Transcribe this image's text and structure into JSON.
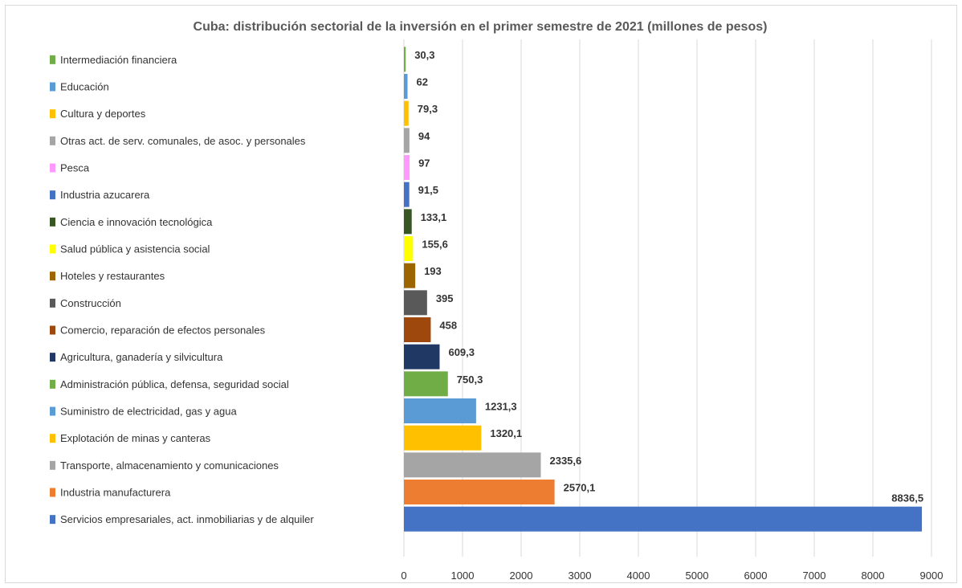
{
  "chart_data": {
    "type": "bar",
    "orientation": "horizontal",
    "title": "Cuba: distribución sectorial de la inversión en el primer semestre de 2021 (millones de pesos)",
    "xlabel": "",
    "ylabel": "",
    "xlim": [
      0,
      9000
    ],
    "x_ticks": [
      "0",
      "1000",
      "2000",
      "3000",
      "4000",
      "5000",
      "6000",
      "7000",
      "8000",
      "9000"
    ],
    "grid": "vertical",
    "legend": "left",
    "bars": [
      {
        "label": "Intermediación financiera",
        "value": 30.3,
        "value_label": "30,3",
        "color": "#70ad47"
      },
      {
        "label": "Educación",
        "value": 62,
        "value_label": "62",
        "color": "#5b9bd5"
      },
      {
        "label": "Cultura y deportes",
        "value": 79.3,
        "value_label": "79,3",
        "color": "#ffc000"
      },
      {
        "label": "Otras act. de serv. comunales, de asoc. y personales",
        "value": 94,
        "value_label": "94",
        "color": "#a5a5a5"
      },
      {
        "label": "Pesca",
        "value": 97,
        "value_label": "97",
        "color": "#ff99ff"
      },
      {
        "label": "Industria azucarera",
        "value": 91.5,
        "value_label": "91,5",
        "color": "#4472c4"
      },
      {
        "label": "Ciencia e innovación tecnológica",
        "value": 133.1,
        "value_label": "133,1",
        "color": "#375623"
      },
      {
        "label": "Salud pública y asistencia social",
        "value": 155.6,
        "value_label": "155,6",
        "color": "#ffff00"
      },
      {
        "label": "Hoteles y restaurantes",
        "value": 193,
        "value_label": "193",
        "color": "#9c6500"
      },
      {
        "label": "Construcción",
        "value": 395,
        "value_label": "395",
        "color": "#595959"
      },
      {
        "label": "Comercio, reparación de efectos personales",
        "value": 458,
        "value_label": "458",
        "color": "#9e480e"
      },
      {
        "label": "Agricultura, ganadería y silvicultura",
        "value": 609.3,
        "value_label": "609,3",
        "color": "#203864"
      },
      {
        "label": "Administración pública, defensa, seguridad social",
        "value": 750.3,
        "value_label": "750,3",
        "color": "#70ad47"
      },
      {
        "label": "Suministro de electricidad, gas y agua",
        "value": 1231.3,
        "value_label": "1231,3",
        "color": "#5b9bd5"
      },
      {
        "label": "Explotación de minas y canteras",
        "value": 1320.1,
        "value_label": "1320,1",
        "color": "#ffc000"
      },
      {
        "label": "Transporte, almacenamiento y comunicaciones",
        "value": 2335.6,
        "value_label": "2335,6",
        "color": "#a5a5a5"
      },
      {
        "label": "Industria manufacturera",
        "value": 2570.1,
        "value_label": "2570,1",
        "color": "#ed7d31"
      },
      {
        "label": "Servicios empresariales, act. inmobiliarias y de alquiler",
        "value": 8836.5,
        "value_label": "8836,5",
        "color": "#4472c4"
      }
    ]
  }
}
